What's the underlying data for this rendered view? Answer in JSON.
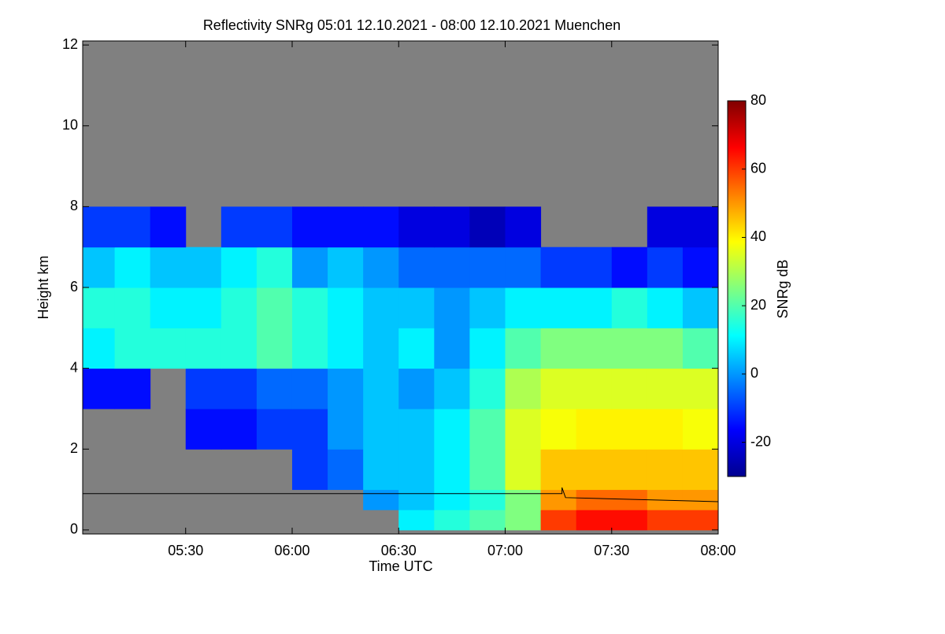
{
  "chart_data": {
    "type": "heatmap",
    "title": "Reflectivity SNRg   05:01 12.10.2021 - 08:00 12.10.2021 Muenchen",
    "x_label": "Time UTC",
    "y_label": "Height km",
    "colorbar_label": "SNRg dB",
    "xlim": [
      301,
      480
    ],
    "xticks": [
      {
        "value": 330,
        "label": "05:30"
      },
      {
        "value": 360,
        "label": "06:00"
      },
      {
        "value": 390,
        "label": "06:30"
      },
      {
        "value": 420,
        "label": "07:00"
      },
      {
        "value": 450,
        "label": "07:30"
      },
      {
        "value": 480,
        "label": "08:00"
      }
    ],
    "ylim": [
      -0.1,
      12.1
    ],
    "yticks": [
      0,
      2,
      4,
      6,
      8,
      10,
      12
    ],
    "clim": [
      -30,
      80
    ],
    "cticks": [
      -20,
      0,
      20,
      40,
      60,
      80
    ],
    "colormap": [
      "#00008f",
      "#0000ff",
      "#0080ff",
      "#00ffff",
      "#80ff80",
      "#ffff00",
      "#ff8000",
      "#ff0000",
      "#800000"
    ],
    "background": "#808080",
    "x_edges": [
      300,
      310,
      320,
      330,
      340,
      350,
      360,
      370,
      380,
      390,
      400,
      410,
      420,
      430,
      440,
      450,
      460,
      470,
      480
    ],
    "y_edges": [
      0,
      0.5,
      1,
      2,
      3,
      4,
      5,
      6,
      7,
      8
    ],
    "z": [
      [
        null,
        null,
        null,
        null,
        null,
        null,
        null,
        null,
        null,
        10,
        15,
        20,
        25,
        60,
        65,
        65,
        60,
        60
      ],
      [
        null,
        null,
        null,
        null,
        null,
        null,
        null,
        null,
        0,
        5,
        10,
        15,
        25,
        50,
        55,
        55,
        50,
        50
      ],
      [
        null,
        null,
        null,
        null,
        null,
        null,
        -10,
        -5,
        5,
        5,
        10,
        20,
        35,
        45,
        45,
        45,
        45,
        45
      ],
      [
        null,
        null,
        null,
        -15,
        -15,
        -10,
        -10,
        0,
        5,
        5,
        10,
        20,
        35,
        38,
        40,
        40,
        40,
        38
      ],
      [
        -15,
        -15,
        null,
        -10,
        -10,
        -5,
        -5,
        0,
        5,
        0,
        5,
        15,
        30,
        35,
        35,
        35,
        35,
        35
      ],
      [
        10,
        15,
        15,
        15,
        15,
        20,
        15,
        10,
        5,
        10,
        0,
        10,
        20,
        25,
        25,
        25,
        25,
        20
      ],
      [
        15,
        15,
        10,
        10,
        15,
        20,
        15,
        10,
        5,
        5,
        0,
        5,
        10,
        10,
        10,
        15,
        10,
        5
      ],
      [
        5,
        10,
        5,
        5,
        10,
        15,
        0,
        5,
        0,
        -5,
        -5,
        -5,
        -5,
        -10,
        -10,
        -15,
        -10,
        -15
      ],
      [
        -10,
        -10,
        -15,
        null,
        -10,
        -10,
        -15,
        -15,
        -15,
        -20,
        -20,
        -25,
        -20,
        null,
        null,
        null,
        -20,
        -20
      ]
    ],
    "line": {
      "color": "#000000",
      "x": [
        301,
        436,
        436,
        437,
        480
      ],
      "values": [
        0.9,
        0.9,
        1.05,
        0.8,
        0.7
      ]
    }
  }
}
